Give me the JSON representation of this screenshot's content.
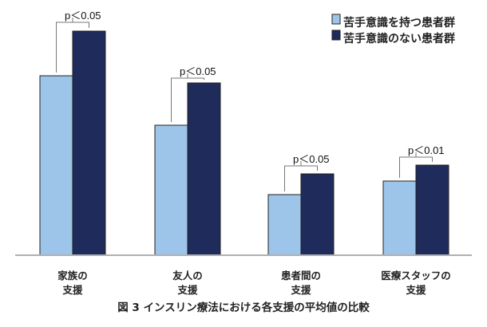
{
  "chart_data": {
    "type": "bar",
    "title": "図 3  インスリン療法における各支援の平均値の比較",
    "xlabel": "",
    "ylabel": "",
    "ylim": [
      0,
      3
    ],
    "grid": false,
    "legend_position": "top-right",
    "categories": [
      [
        "家族の",
        "支援"
      ],
      [
        "友人の",
        "支援"
      ],
      [
        "患者間の",
        "支援"
      ],
      [
        "医療スタッフの",
        "支援"
      ]
    ],
    "series": [
      {
        "name": "苦手意識を持つ患者群",
        "color": "#9cc5e9",
        "values": [
          2.25,
          1.63,
          0.76,
          0.93
        ]
      },
      {
        "name": "苦手意識のない患者群",
        "color": "#1f2b5a",
        "values": [
          2.81,
          2.16,
          1.02,
          1.13
        ]
      }
    ],
    "annotations": [
      "p＜0.05",
      "p＜0.05",
      "p＜0.05",
      "p＜0.01"
    ]
  }
}
